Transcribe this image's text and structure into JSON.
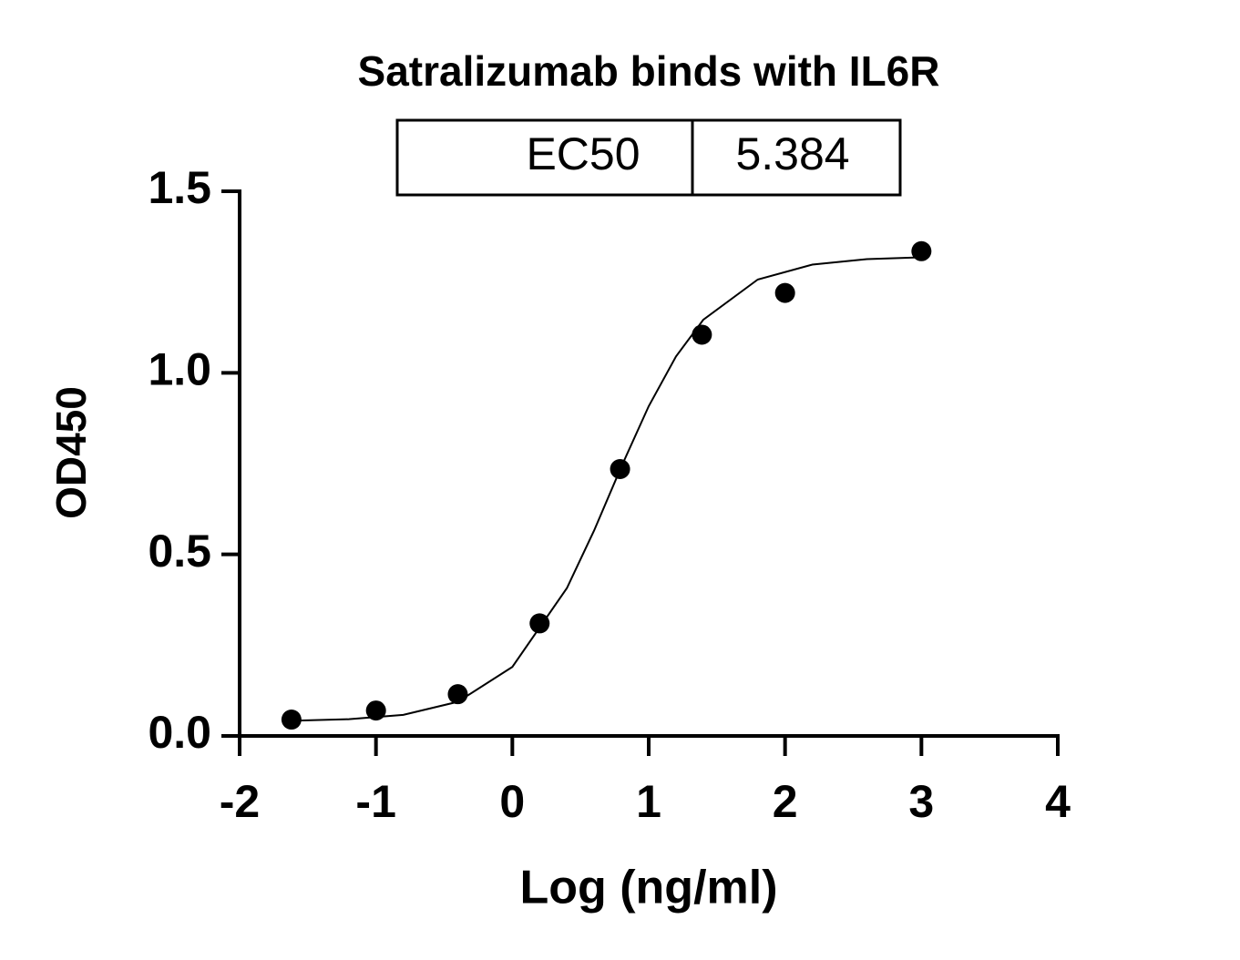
{
  "chart_data": {
    "type": "scatter",
    "title": "Satralizumab binds with IL6R",
    "x_label": "Log (ng/ml)",
    "y_label": "OD450",
    "annotations": [
      {
        "label": "EC50",
        "value": 5.384
      }
    ],
    "xlim": [
      -2,
      4
    ],
    "xticks": [
      -2,
      -1,
      0,
      1,
      2,
      3,
      4
    ],
    "ylim": [
      0,
      1.5
    ],
    "yticks": [
      {
        "value": 0,
        "label": "0.0"
      },
      0.5,
      {
        "value": 1,
        "label": "1.0"
      },
      1.5
    ],
    "color": "#000000",
    "x": [
      -1.62,
      -1.0,
      -0.4,
      0.2,
      0.79,
      1.39,
      2.0,
      3.0
    ],
    "values": [
      0.045,
      0.07,
      0.115,
      0.31,
      0.735,
      1.105,
      1.22,
      1.335
    ],
    "fit": {
      "x": [
        -1.6,
        -1.2,
        -0.8,
        -0.4,
        0,
        0.4,
        0.6,
        0.8,
        1.0,
        1.2,
        1.4,
        1.8,
        2.2,
        2.6,
        3.0
      ],
      "values": [
        0.042,
        0.046,
        0.058,
        0.094,
        0.19,
        0.407,
        0.566,
        0.742,
        0.908,
        1.045,
        1.146,
        1.257,
        1.298,
        1.313,
        1.318
      ]
    }
  }
}
